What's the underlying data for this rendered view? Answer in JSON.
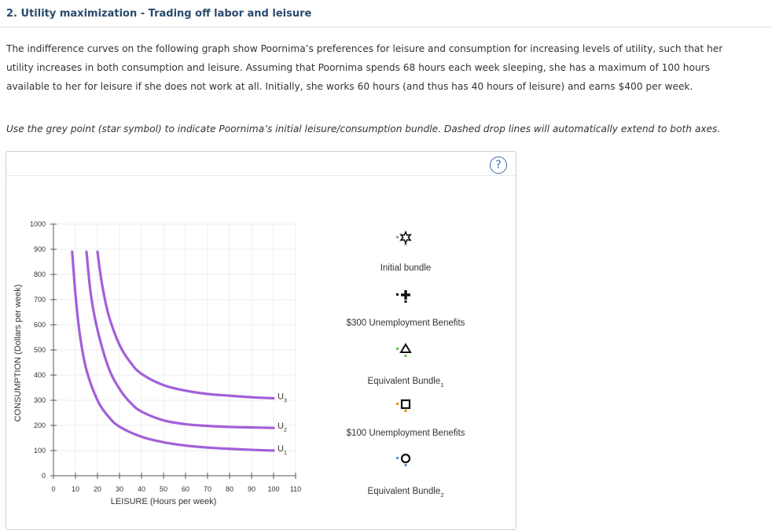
{
  "question": {
    "heading": "2. Utility maximization - Trading off labor and leisure",
    "paragraph": "The indifference curves on the following graph show Poornima’s preferences for leisure and consumption for increasing levels of utility, such that her utility increases in both consumption and leisure. Assuming that Poornima spends 68 hours each week sleeping, she has a maximum of 100 hours available to her for leisure if she does not work at all. Initially, she works 60 hours (and thus has 40 hours of leisure) and earns $400 per week.",
    "instruction": "Use the grey point (star symbol) to indicate Poornima’s initial leisure/consumption bundle. Dashed drop lines will automatically extend to both axes."
  },
  "help_label": "?",
  "legend": [
    {
      "label": "Initial bundle",
      "icon": "star-icon",
      "color": "#9e9e9e"
    },
    {
      "label": "$300 Unemployment Benefits",
      "icon": "plus-icon",
      "color": "#111111"
    },
    {
      "label": "Equivalent Bundle",
      "sub": "1",
      "icon": "triangle-icon",
      "color": "#6abf3f"
    },
    {
      "label": "$100 Unemployment Benefits",
      "icon": "square-icon",
      "color": "#f28e1a"
    },
    {
      "label": "Equivalent Bundle",
      "sub": "2",
      "icon": "circle-icon",
      "color": "#5b8fc9"
    }
  ],
  "chart_data": {
    "type": "line",
    "xlabel": "LEISURE (Hours per week)",
    "ylabel": "CONSUMPTION (Dollars per week)",
    "xlim": [
      0,
      110
    ],
    "ylim": [
      0,
      1000
    ],
    "xticks": [
      0,
      10,
      20,
      30,
      40,
      50,
      60,
      70,
      80,
      90,
      100,
      110
    ],
    "yticks": [
      0,
      100,
      200,
      300,
      400,
      500,
      600,
      700,
      800,
      900,
      1000
    ],
    "grid": true,
    "curve_color": "#a35fd8",
    "series": [
      {
        "name": "U",
        "sub": "1",
        "x": [
          8.5,
          10,
          12,
          15,
          20,
          25,
          30,
          40,
          50,
          60,
          70,
          80,
          90,
          100
        ],
        "y": [
          890,
          720,
          560,
          420,
          300,
          235,
          195,
          155,
          133,
          120,
          112,
          107,
          103,
          100
        ]
      },
      {
        "name": "U",
        "sub": "2",
        "x": [
          15,
          17,
          20,
          25,
          30,
          35,
          40,
          50,
          60,
          70,
          80,
          90,
          100
        ],
        "y": [
          890,
          720,
          580,
          430,
          345,
          290,
          255,
          220,
          205,
          198,
          194,
          192,
          190
        ]
      },
      {
        "name": "U",
        "sub": "3",
        "x": [
          20,
          22,
          25,
          30,
          35,
          40,
          50,
          60,
          70,
          80,
          90,
          100
        ],
        "y": [
          890,
          765,
          640,
          520,
          450,
          405,
          360,
          338,
          325,
          318,
          312,
          308
        ]
      }
    ]
  }
}
